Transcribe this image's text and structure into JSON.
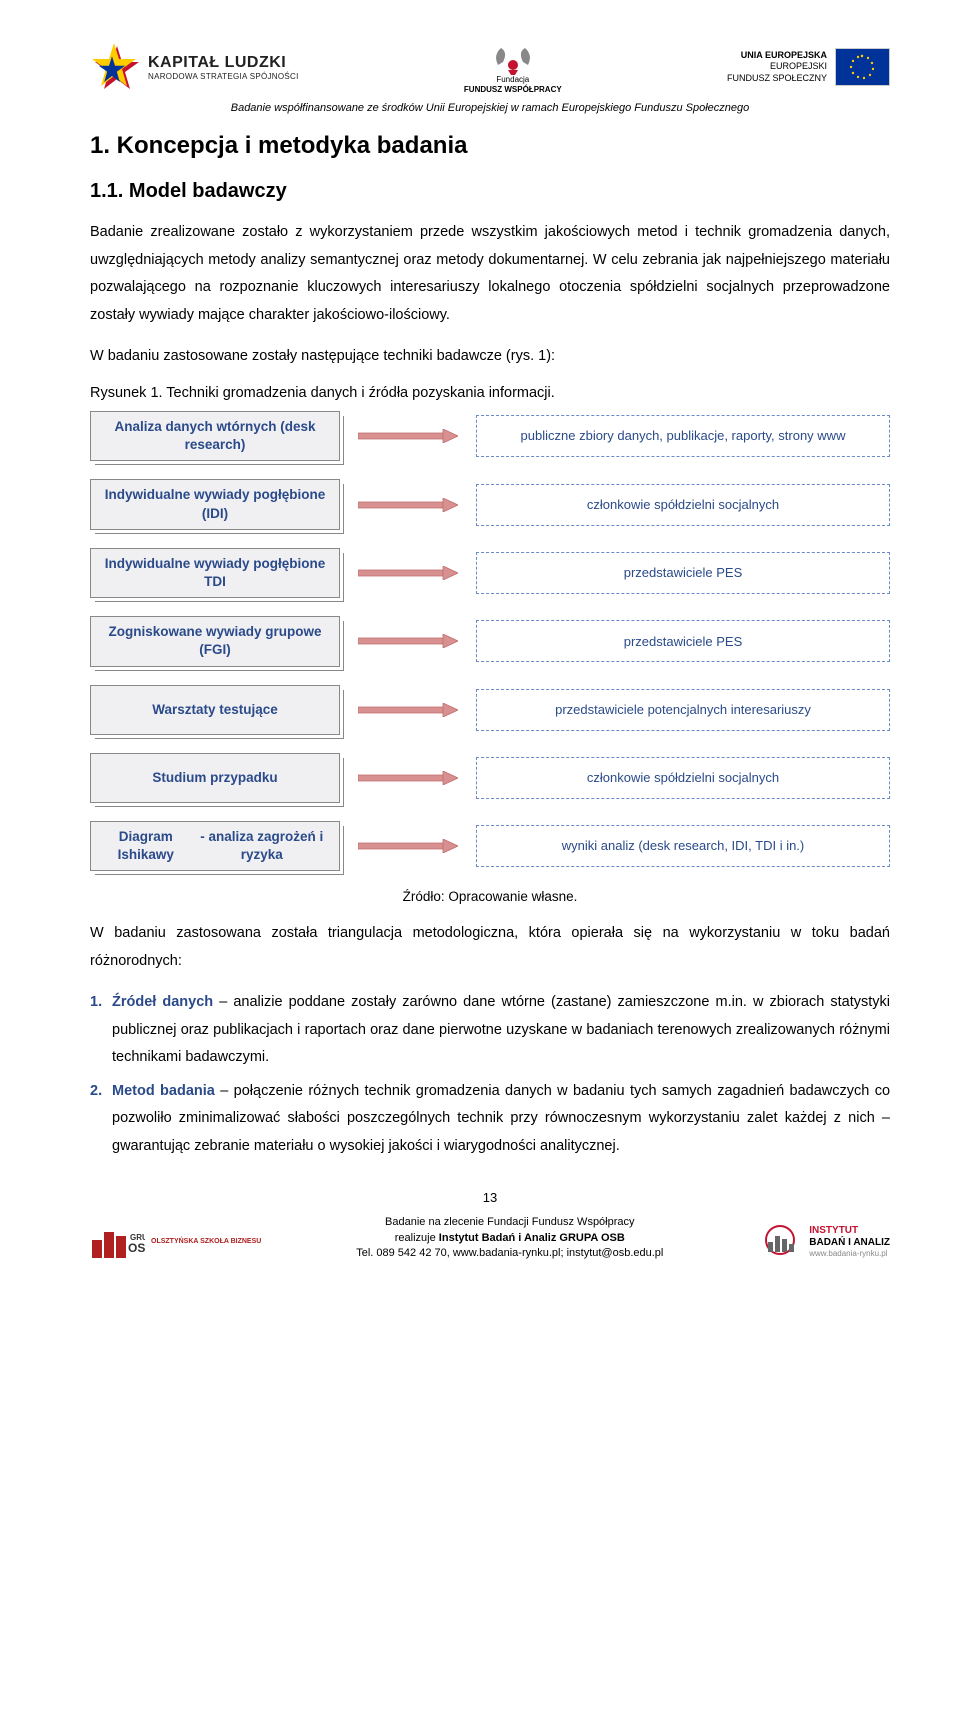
{
  "header": {
    "logo_kl_title": "KAPITAŁ LUDZKI",
    "logo_kl_sub": "NARODOWA STRATEGIA SPÓJNOŚCI",
    "logo_center_top": "Fundacja",
    "logo_center_name": "FUNDUSZ WSPÓŁPRACY",
    "logo_eu_line1": "UNIA EUROPEJSKA",
    "logo_eu_line2": "EUROPEJSKI",
    "logo_eu_line3": "FUNDUSZ SPOŁECZNY",
    "funding_note": "Badanie współfinansowane ze środków Unii Europejskiej w ramach Europejskiego Funduszu Społecznego"
  },
  "h1": "1. Koncepcja i metodyka badania",
  "h2": "1.1. Model badawczy",
  "para1": "Badanie zrealizowane zostało z wykorzystaniem przede wszystkim jakościowych metod i technik gromadzenia danych, uwzględniających metody analizy semantycznej oraz metody dokumentarnej. W celu zebrania jak najpełniejszego materiału pozwalającego na rozpoznanie kluczowych interesariuszy lokalnego otoczenia spółdzielni socjalnych przeprowadzone zostały wywiady mające charakter jakościowo-ilościowy.",
  "para2": "W badaniu zastosowane zostały następujące techniki badawcze (rys. 1):",
  "fig_caption": "Rysunek 1. Techniki gromadzenia danych i źródła pozyskania informacji.",
  "diagram": {
    "rows": [
      {
        "tech": "Analiza danych wtórnych (desk research)",
        "output": "publiczne zbiory danych, publikacje, raporty, strony www"
      },
      {
        "tech": "Indywidualne wywiady pogłębione (IDI)",
        "output": "członkowie spółdzielni socjalnych"
      },
      {
        "tech": "Indywidualne wywiady pogłębione TDI",
        "output": "przedstawiciele PES"
      },
      {
        "tech": "Zogniskowane wywiady grupowe (FGI)",
        "output": "przedstawiciele PES"
      },
      {
        "tech": "Warsztaty testujące",
        "output": "przedstawiciele potencjalnych interesariuszy"
      },
      {
        "tech": "Studium przypadku",
        "output": "członkowie spółdzielni socjalnych"
      },
      {
        "tech": "Diagram Ishikawy\n- analiza zagrożeń i ryzyka",
        "output": "wyniki analiz (desk research, IDI, TDI i in.)"
      }
    ],
    "tech_box_bg": "#f0f0f2",
    "tech_box_border": "#888888",
    "tech_text_color": "#2a4a8a",
    "arrow_color": "#d89090",
    "arrow_border": "#c07070",
    "output_border": "#6a8acc",
    "output_text_color": "#2a4a8a"
  },
  "source_note": "Źródło: Opracowanie własne.",
  "para3": "W badaniu zastosowana została triangulacja metodologiczna, która opierała się na wykorzystaniu w toku badań różnorodnych:",
  "list": [
    {
      "num": "1.",
      "term": "Źródeł danych",
      "rest": " – analizie poddane zostały zarówno dane wtórne (zastane) zamieszczone m.in. w zbiorach statystyki publicznej oraz publikacjach i raportach oraz dane pierwotne uzyskane w badaniach terenowych zrealizowanych różnymi technikami badawczymi."
    },
    {
      "num": "2.",
      "term": "Metod badania",
      "rest": " – połączenie różnych technik gromadzenia danych w badaniu tych samych zagadnień badawczych co pozwoliło zminimalizować słabości poszczególnych technik przy równoczesnym wykorzystaniu zalet każdej z nich – gwarantując zebranie materiału o wysokiej jakości i wiarygodności analitycznej."
    }
  ],
  "page_num": "13",
  "footer": {
    "left_text": "OLSZTYŃSKA SZKOŁA BIZNESU",
    "center_line1": "Badanie na zlecenie Fundacji Fundusz Współpracy",
    "center_line2_pre": "realizuje ",
    "center_line2_bold": "Instytut Badań i Analiz GRUPA OSB",
    "center_line3": "Tel. 089 542 42 70, www.badania-rynku.pl; instytut@osb.edu.pl",
    "right_line1": "INSTYTUT",
    "right_line2": "BADAŃ I ANALIZ",
    "right_url": "www.badania-rynku.pl"
  }
}
